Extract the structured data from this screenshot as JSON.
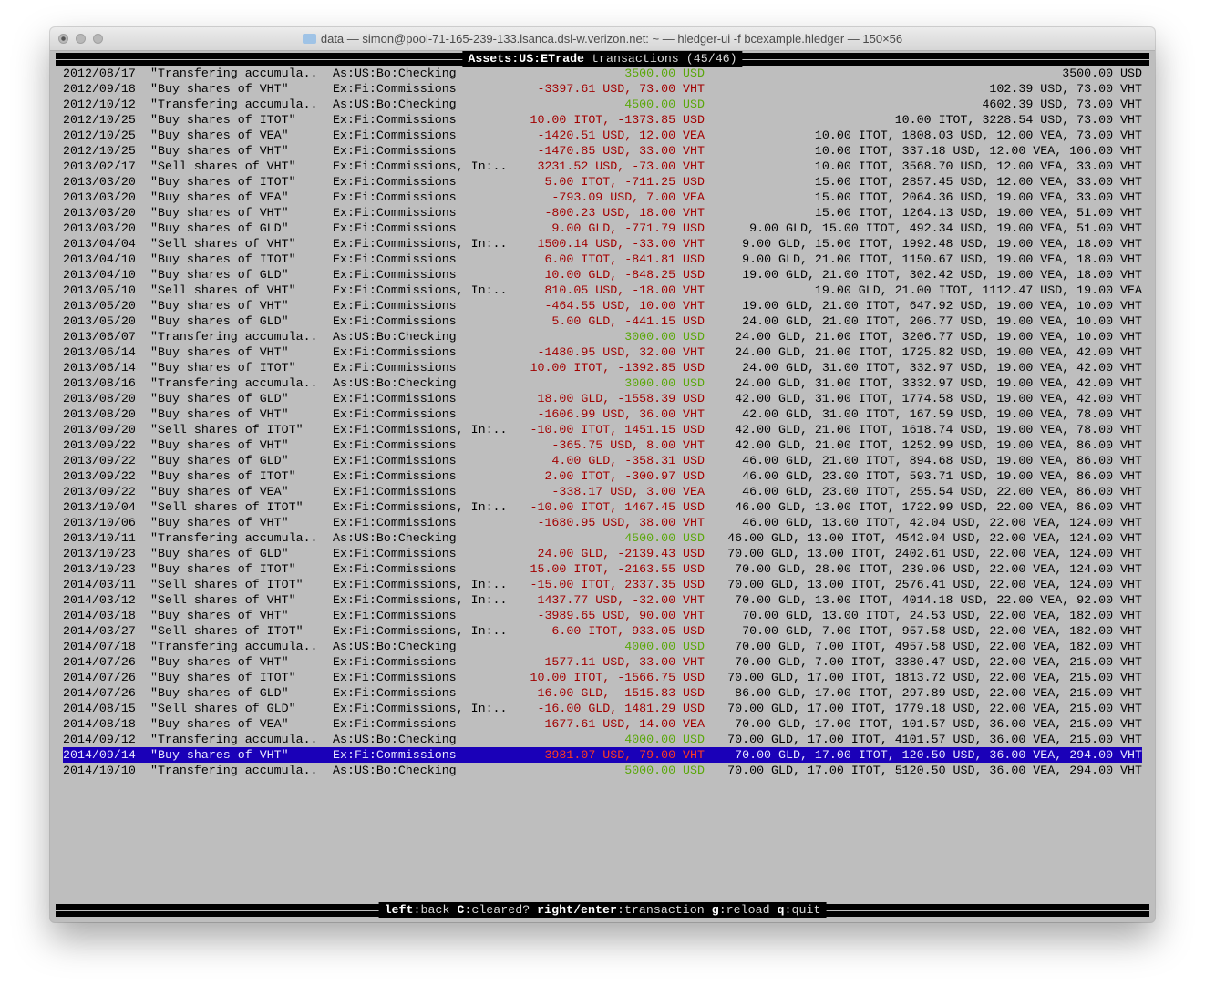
{
  "window": {
    "title": "data — simon@pool-71-165-239-133.lsanca.dsl-w.verizon.net: ~ — hledger-ui -f bcexample.hledger — 150×56"
  },
  "header": {
    "account": "Assets:US:ETrade",
    "label": "transactions",
    "count": "(45/46)"
  },
  "colors": {
    "positive": "#5aa70a",
    "negative": "#a10000",
    "selection": "#1a00b8"
  },
  "selected_index": 44,
  "rows": [
    [
      "2012/08/17",
      "\"Transfering accumula..",
      "As:US:Bo:Checking",
      "3500.00 USD",
      "3500.00 USD",
      "green"
    ],
    [
      "2012/09/18",
      "\"Buy shares of VHT\"",
      "Ex:Fi:Commissions",
      "-3397.61 USD, 73.00 VHT",
      "102.39 USD, 73.00 VHT",
      "red"
    ],
    [
      "2012/10/12",
      "\"Transfering accumula..",
      "As:US:Bo:Checking",
      "4500.00 USD",
      "4602.39 USD, 73.00 VHT",
      "green"
    ],
    [
      "2012/10/25",
      "\"Buy shares of ITOT\"",
      "Ex:Fi:Commissions",
      "10.00 ITOT, -1373.85 USD",
      "10.00 ITOT, 3228.54 USD, 73.00 VHT",
      "red"
    ],
    [
      "2012/10/25",
      "\"Buy shares of VEA\"",
      "Ex:Fi:Commissions",
      "-1420.51 USD, 12.00 VEA",
      "10.00 ITOT, 1808.03 USD, 12.00 VEA, 73.00 VHT",
      "red"
    ],
    [
      "2012/10/25",
      "\"Buy shares of VHT\"",
      "Ex:Fi:Commissions",
      "-1470.85 USD, 33.00 VHT",
      "10.00 ITOT, 337.18 USD, 12.00 VEA, 106.00 VHT",
      "red"
    ],
    [
      "2013/02/17",
      "\"Sell shares of VHT\"",
      "Ex:Fi:Commissions, In:..",
      "3231.52 USD, -73.00 VHT",
      "10.00 ITOT, 3568.70 USD, 12.00 VEA, 33.00 VHT",
      "red"
    ],
    [
      "2013/03/20",
      "\"Buy shares of ITOT\"",
      "Ex:Fi:Commissions",
      "5.00 ITOT, -711.25 USD",
      "15.00 ITOT, 2857.45 USD, 12.00 VEA, 33.00 VHT",
      "red"
    ],
    [
      "2013/03/20",
      "\"Buy shares of VEA\"",
      "Ex:Fi:Commissions",
      "-793.09 USD, 7.00 VEA",
      "15.00 ITOT, 2064.36 USD, 19.00 VEA, 33.00 VHT",
      "red"
    ],
    [
      "2013/03/20",
      "\"Buy shares of VHT\"",
      "Ex:Fi:Commissions",
      "-800.23 USD, 18.00 VHT",
      "15.00 ITOT, 1264.13 USD, 19.00 VEA, 51.00 VHT",
      "red"
    ],
    [
      "2013/03/20",
      "\"Buy shares of GLD\"",
      "Ex:Fi:Commissions",
      "9.00 GLD, -771.79 USD",
      "9.00 GLD, 15.00 ITOT, 492.34 USD, 19.00 VEA, 51.00 VHT",
      "red"
    ],
    [
      "2013/04/04",
      "\"Sell shares of VHT\"",
      "Ex:Fi:Commissions, In:..",
      "1500.14 USD, -33.00 VHT",
      "9.00 GLD, 15.00 ITOT, 1992.48 USD, 19.00 VEA, 18.00 VHT",
      "red"
    ],
    [
      "2013/04/10",
      "\"Buy shares of ITOT\"",
      "Ex:Fi:Commissions",
      "6.00 ITOT, -841.81 USD",
      "9.00 GLD, 21.00 ITOT, 1150.67 USD, 19.00 VEA, 18.00 VHT",
      "red"
    ],
    [
      "2013/04/10",
      "\"Buy shares of GLD\"",
      "Ex:Fi:Commissions",
      "10.00 GLD, -848.25 USD",
      "19.00 GLD, 21.00 ITOT, 302.42 USD, 19.00 VEA, 18.00 VHT",
      "red"
    ],
    [
      "2013/05/10",
      "\"Sell shares of VHT\"",
      "Ex:Fi:Commissions, In:..",
      "810.05 USD, -18.00 VHT",
      "19.00 GLD, 21.00 ITOT, 1112.47 USD, 19.00 VEA",
      "red"
    ],
    [
      "2013/05/20",
      "\"Buy shares of VHT\"",
      "Ex:Fi:Commissions",
      "-464.55 USD, 10.00 VHT",
      "19.00 GLD, 21.00 ITOT, 647.92 USD, 19.00 VEA, 10.00 VHT",
      "red"
    ],
    [
      "2013/05/20",
      "\"Buy shares of GLD\"",
      "Ex:Fi:Commissions",
      "5.00 GLD, -441.15 USD",
      "24.00 GLD, 21.00 ITOT, 206.77 USD, 19.00 VEA, 10.00 VHT",
      "red"
    ],
    [
      "2013/06/07",
      "\"Transfering accumula..",
      "As:US:Bo:Checking",
      "3000.00 USD",
      "24.00 GLD, 21.00 ITOT, 3206.77 USD, 19.00 VEA, 10.00 VHT",
      "green"
    ],
    [
      "2013/06/14",
      "\"Buy shares of VHT\"",
      "Ex:Fi:Commissions",
      "-1480.95 USD, 32.00 VHT",
      "24.00 GLD, 21.00 ITOT, 1725.82 USD, 19.00 VEA, 42.00 VHT",
      "red"
    ],
    [
      "2013/06/14",
      "\"Buy shares of ITOT\"",
      "Ex:Fi:Commissions",
      "10.00 ITOT, -1392.85 USD",
      "24.00 GLD, 31.00 ITOT, 332.97 USD, 19.00 VEA, 42.00 VHT",
      "red"
    ],
    [
      "2013/08/16",
      "\"Transfering accumula..",
      "As:US:Bo:Checking",
      "3000.00 USD",
      "24.00 GLD, 31.00 ITOT, 3332.97 USD, 19.00 VEA, 42.00 VHT",
      "green"
    ],
    [
      "2013/08/20",
      "\"Buy shares of GLD\"",
      "Ex:Fi:Commissions",
      "18.00 GLD, -1558.39 USD",
      "42.00 GLD, 31.00 ITOT, 1774.58 USD, 19.00 VEA, 42.00 VHT",
      "red"
    ],
    [
      "2013/08/20",
      "\"Buy shares of VHT\"",
      "Ex:Fi:Commissions",
      "-1606.99 USD, 36.00 VHT",
      "42.00 GLD, 31.00 ITOT, 167.59 USD, 19.00 VEA, 78.00 VHT",
      "red"
    ],
    [
      "2013/09/20",
      "\"Sell shares of ITOT\"",
      "Ex:Fi:Commissions, In:..",
      "-10.00 ITOT, 1451.15 USD",
      "42.00 GLD, 21.00 ITOT, 1618.74 USD, 19.00 VEA, 78.00 VHT",
      "red"
    ],
    [
      "2013/09/22",
      "\"Buy shares of VHT\"",
      "Ex:Fi:Commissions",
      "-365.75 USD, 8.00 VHT",
      "42.00 GLD, 21.00 ITOT, 1252.99 USD, 19.00 VEA, 86.00 VHT",
      "red"
    ],
    [
      "2013/09/22",
      "\"Buy shares of GLD\"",
      "Ex:Fi:Commissions",
      "4.00 GLD, -358.31 USD",
      "46.00 GLD, 21.00 ITOT, 894.68 USD, 19.00 VEA, 86.00 VHT",
      "red"
    ],
    [
      "2013/09/22",
      "\"Buy shares of ITOT\"",
      "Ex:Fi:Commissions",
      "2.00 ITOT, -300.97 USD",
      "46.00 GLD, 23.00 ITOT, 593.71 USD, 19.00 VEA, 86.00 VHT",
      "red"
    ],
    [
      "2013/09/22",
      "\"Buy shares of VEA\"",
      "Ex:Fi:Commissions",
      "-338.17 USD, 3.00 VEA",
      "46.00 GLD, 23.00 ITOT, 255.54 USD, 22.00 VEA, 86.00 VHT",
      "red"
    ],
    [
      "2013/10/04",
      "\"Sell shares of ITOT\"",
      "Ex:Fi:Commissions, In:..",
      "-10.00 ITOT, 1467.45 USD",
      "46.00 GLD, 13.00 ITOT, 1722.99 USD, 22.00 VEA, 86.00 VHT",
      "red"
    ],
    [
      "2013/10/06",
      "\"Buy shares of VHT\"",
      "Ex:Fi:Commissions",
      "-1680.95 USD, 38.00 VHT",
      "46.00 GLD, 13.00 ITOT, 42.04 USD, 22.00 VEA, 124.00 VHT",
      "red"
    ],
    [
      "2013/10/11",
      "\"Transfering accumula..",
      "As:US:Bo:Checking",
      "4500.00 USD",
      "46.00 GLD, 13.00 ITOT, 4542.04 USD, 22.00 VEA, 124.00 VHT",
      "green"
    ],
    [
      "2013/10/23",
      "\"Buy shares of GLD\"",
      "Ex:Fi:Commissions",
      "24.00 GLD, -2139.43 USD",
      "70.00 GLD, 13.00 ITOT, 2402.61 USD, 22.00 VEA, 124.00 VHT",
      "red"
    ],
    [
      "2013/10/23",
      "\"Buy shares of ITOT\"",
      "Ex:Fi:Commissions",
      "15.00 ITOT, -2163.55 USD",
      "70.00 GLD, 28.00 ITOT, 239.06 USD, 22.00 VEA, 124.00 VHT",
      "red"
    ],
    [
      "2014/03/11",
      "\"Sell shares of ITOT\"",
      "Ex:Fi:Commissions, In:..",
      "-15.00 ITOT, 2337.35 USD",
      "70.00 GLD, 13.00 ITOT, 2576.41 USD, 22.00 VEA, 124.00 VHT",
      "red"
    ],
    [
      "2014/03/12",
      "\"Sell shares of VHT\"",
      "Ex:Fi:Commissions, In:..",
      "1437.77 USD, -32.00 VHT",
      "70.00 GLD, 13.00 ITOT, 4014.18 USD, 22.00 VEA, 92.00 VHT",
      "red"
    ],
    [
      "2014/03/18",
      "\"Buy shares of VHT\"",
      "Ex:Fi:Commissions",
      "-3989.65 USD, 90.00 VHT",
      "70.00 GLD, 13.00 ITOT, 24.53 USD, 22.00 VEA, 182.00 VHT",
      "red"
    ],
    [
      "2014/03/27",
      "\"Sell shares of ITOT\"",
      "Ex:Fi:Commissions, In:..",
      "-6.00 ITOT, 933.05 USD",
      "70.00 GLD, 7.00 ITOT, 957.58 USD, 22.00 VEA, 182.00 VHT",
      "red"
    ],
    [
      "2014/07/18",
      "\"Transfering accumula..",
      "As:US:Bo:Checking",
      "4000.00 USD",
      "70.00 GLD, 7.00 ITOT, 4957.58 USD, 22.00 VEA, 182.00 VHT",
      "green"
    ],
    [
      "2014/07/26",
      "\"Buy shares of VHT\"",
      "Ex:Fi:Commissions",
      "-1577.11 USD, 33.00 VHT",
      "70.00 GLD, 7.00 ITOT, 3380.47 USD, 22.00 VEA, 215.00 VHT",
      "red"
    ],
    [
      "2014/07/26",
      "\"Buy shares of ITOT\"",
      "Ex:Fi:Commissions",
      "10.00 ITOT, -1566.75 USD",
      "70.00 GLD, 17.00 ITOT, 1813.72 USD, 22.00 VEA, 215.00 VHT",
      "red"
    ],
    [
      "2014/07/26",
      "\"Buy shares of GLD\"",
      "Ex:Fi:Commissions",
      "16.00 GLD, -1515.83 USD",
      "86.00 GLD, 17.00 ITOT, 297.89 USD, 22.00 VEA, 215.00 VHT",
      "red"
    ],
    [
      "2014/08/15",
      "\"Sell shares of GLD\"",
      "Ex:Fi:Commissions, In:..",
      "-16.00 GLD, 1481.29 USD",
      "70.00 GLD, 17.00 ITOT, 1779.18 USD, 22.00 VEA, 215.00 VHT",
      "red"
    ],
    [
      "2014/08/18",
      "\"Buy shares of VEA\"",
      "Ex:Fi:Commissions",
      "-1677.61 USD, 14.00 VEA",
      "70.00 GLD, 17.00 ITOT, 101.57 USD, 36.00 VEA, 215.00 VHT",
      "red"
    ],
    [
      "2014/09/12",
      "\"Transfering accumula..",
      "As:US:Bo:Checking",
      "4000.00 USD",
      "70.00 GLD, 17.00 ITOT, 4101.57 USD, 36.00 VEA, 215.00 VHT",
      "green"
    ],
    [
      "2014/09/14",
      "\"Buy shares of VHT\"",
      "Ex:Fi:Commissions",
      "-3981.07 USD, 79.00 VHT",
      "70.00 GLD, 17.00 ITOT, 120.50 USD, 36.00 VEA, 294.00 VHT",
      "red"
    ],
    [
      "2014/10/10",
      "\"Transfering accumula..",
      "As:US:Bo:Checking",
      "5000.00 USD",
      "70.00 GLD, 17.00 ITOT, 5120.50 USD, 36.00 VEA, 294.00 VHT",
      "green"
    ]
  ],
  "footer": {
    "keys": [
      {
        "key": "left",
        "action": "back"
      },
      {
        "key": "C",
        "action": "cleared?"
      },
      {
        "key": "right/enter",
        "action": "transaction"
      },
      {
        "key": "g",
        "action": "reload"
      },
      {
        "key": "q",
        "action": "quit"
      }
    ]
  }
}
